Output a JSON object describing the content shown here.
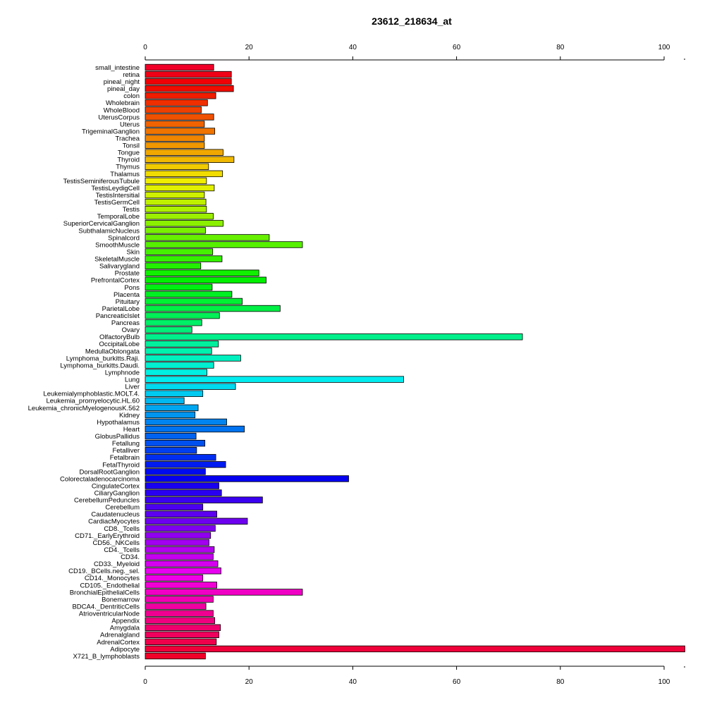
{
  "chart_data": {
    "type": "bar",
    "orientation": "horizontal",
    "title": "23612_218634_at",
    "xlabel": "",
    "ylabel": "",
    "xlim": [
      0,
      104
    ],
    "ticks": [
      "0",
      "20",
      "40",
      "60",
      "80",
      "100"
    ],
    "tick_values": [
      0,
      20,
      40,
      60,
      80,
      100
    ],
    "axes": [
      "top",
      "bottom"
    ],
    "grid": false,
    "legend": "none",
    "color_scheme": "rainbow (red → magenta → blue → cyan → green → yellow → orange → red)",
    "categories": [
      "small_intestine",
      "retina",
      "pineal_night",
      "pineal_day",
      "colon",
      "Wholebrain",
      "WholeBlood",
      "UterusCorpus",
      "Uterus",
      "TrigeminalGanglion",
      "Trachea",
      "Tonsil",
      "Tongue",
      "Thyroid",
      "Thymus",
      "Thalamus",
      "TestisSeminiferousTubule",
      "TestisLeydigCell",
      "TestisIntersitial",
      "TestisGermCell",
      "Testis",
      "TemporalLobe",
      "SuperiorCervicalGanglion",
      "SubthalamicNucleus",
      "Spinalcord",
      "SmoothMuscle",
      "Skin",
      "SkeletalMuscle",
      "Salivarygland",
      "Prostate",
      "PrefrontalCortex",
      "Pons",
      "Placenta",
      "Pituitary",
      "ParietalLobe",
      "PancreaticIslet",
      "Pancreas",
      "Ovary",
      "OlfactoryBulb",
      "OccipitalLobe",
      "MedullaOblongata",
      "Lymphoma_burkitts.Raji.",
      "Lymphoma_burkitts.Daudi.",
      "Lymphnode",
      "Lung",
      "Liver",
      "Leukemialymphoblastic.MOLT.4.",
      "Leukemia_promyelocytic.HL.60",
      "Leukemia_chronicMyelogenousK.562",
      "Kidney",
      "Hypothalamus",
      "Heart",
      "GlobusPallidus",
      "Fetallung",
      "Fetalliver",
      "Fetalbrain",
      "FetalThyroid",
      "DorsalRootGanglion",
      "Colorectaladenocarcinoma",
      "CingulateCortex",
      "CiliaryGanglion",
      "CerebellumPeduncles",
      "Cerebellum",
      "Caudatenucleus",
      "CardiacMyocytes",
      "CD8._Tcells",
      "CD71._EarlyErythroid",
      "CD56._NKCells",
      "CD4._Tcells",
      "CD34.",
      "CD33._Myeloid",
      "CD19._BCells.neg._sel.",
      "CD14._Monocytes",
      "CD105._Endothelial",
      "BronchialEpithelialCells",
      "Bonemarrow",
      "BDCA4._DentriticCells",
      "AtrioventricularNode",
      "Appendix",
      "Amygdala",
      "Adrenalgland",
      "AdrenalCortex",
      "Adipocyte",
      "X721_B_lymphoblasts"
    ],
    "values": [
      13.2,
      16.6,
      16.6,
      17.0,
      13.6,
      12.0,
      10.8,
      13.2,
      11.4,
      13.4,
      11.4,
      11.4,
      15.0,
      17.1,
      12.2,
      14.9,
      11.8,
      13.3,
      11.4,
      11.7,
      11.8,
      13.1,
      15.0,
      11.6,
      23.9,
      30.3,
      13.0,
      14.8,
      10.7,
      21.9,
      23.3,
      12.9,
      16.7,
      18.7,
      26.0,
      14.3,
      10.9,
      9.0,
      72.7,
      14.1,
      12.8,
      18.4,
      13.2,
      11.9,
      49.8,
      17.4,
      11.1,
      7.5,
      10.2,
      9.6,
      15.7,
      19.1,
      9.8,
      11.5,
      9.9,
      13.6,
      15.5,
      11.6,
      39.2,
      14.2,
      14.7,
      22.6,
      11.1,
      13.8,
      19.7,
      13.5,
      12.6,
      12.3,
      13.3,
      13.1,
      14.0,
      14.6,
      11.1,
      13.8,
      30.3,
      13.1,
      11.7,
      13.1,
      13.4,
      14.5,
      14.2,
      13.7,
      104.0,
      11.6
    ]
  }
}
